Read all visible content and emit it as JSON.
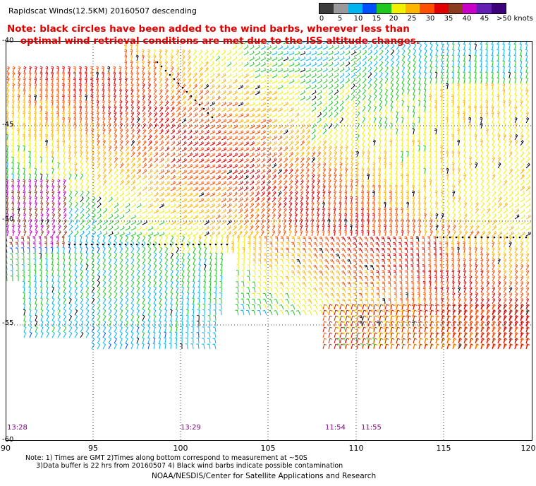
{
  "title": "Rapidscat Winds(12.5KM) 20160507 descending",
  "note": "Note: black circles have been added to the wind barbs, wherever less than\n    optimal wind retrieval conditions are met due to the ISS altitude changes.",
  "legend": {
    "labels": [
      "0",
      "5",
      "10",
      "15",
      "20",
      "25",
      "30",
      "35",
      "40",
      "45",
      ">50 knots"
    ],
    "colors": [
      "#3c3c3c",
      "#9a9a9a",
      "#00b4f0",
      "#0050ff",
      "#1ec81e",
      "#f0f000",
      "#ffb400",
      "#ff5000",
      "#e10000",
      "#8b3c1e",
      "#c800c8",
      "#641eb4",
      "#3c0078"
    ]
  },
  "lat_labels": [
    "-40",
    "-45",
    "-50",
    "-55",
    "-60"
  ],
  "lon_labels": [
    "90",
    "95",
    "100",
    "105",
    "110",
    "115",
    "120"
  ],
  "time_labels": [
    "13:28",
    "13:29",
    "11:54",
    "11:55"
  ],
  "footnote": "Note: 1) Times are GMT 2)Times along bottom correspond to measurement at ~50S\n     3)Data buffer is 22 hrs from 20160507 4) Black wind barbs indicate possible contamination",
  "credit": "NOAA/NESDIS/Center for Satellite Applications and Research"
}
